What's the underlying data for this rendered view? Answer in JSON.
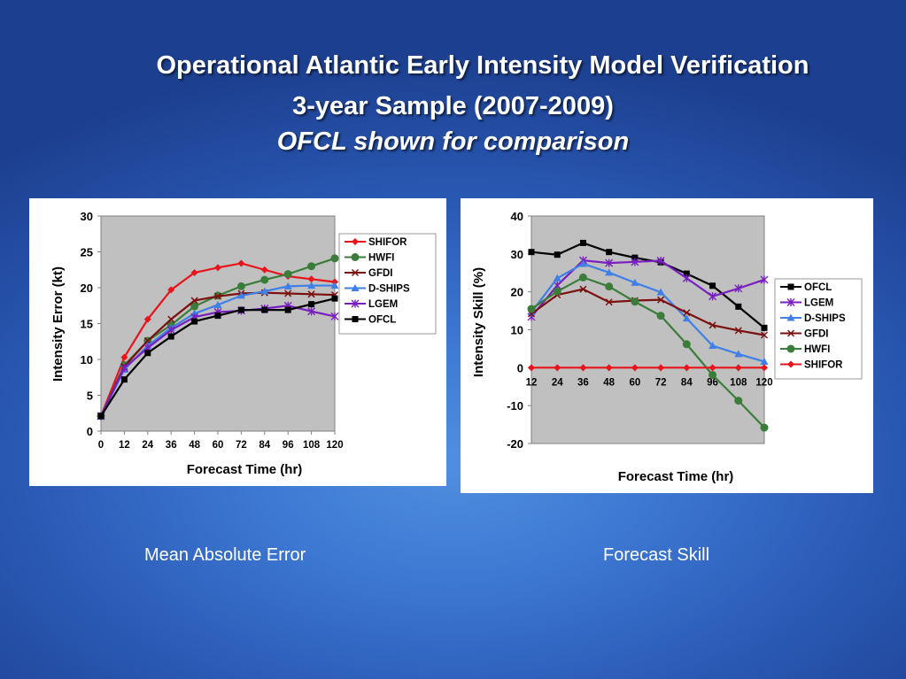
{
  "slide": {
    "title_line1": "Operational Atlantic Early Intensity Model Verification",
    "title_line2": "3-year Sample (2007-2009)",
    "title_line3": "OFCL shown for comparison",
    "caption_left": "Mean Absolute Error",
    "caption_right": "Forecast Skill"
  },
  "chart_data": [
    {
      "type": "line",
      "xlabel": "Forecast Time (hr)",
      "ylabel": "Intensity Error (kt)",
      "x": [
        0,
        12,
        24,
        36,
        48,
        60,
        72,
        84,
        96,
        108,
        120
      ],
      "ylim": [
        0,
        30
      ],
      "yticks": [
        0,
        5,
        10,
        15,
        20,
        25,
        30
      ],
      "grid": false,
      "plot_background": "#c0c0c0",
      "legend_position": "right",
      "series": [
        {
          "name": "SHIFOR",
          "color": "#e8141c",
          "marker": "diamond",
          "values": [
            2.1,
            10.3,
            15.6,
            19.7,
            22.1,
            22.8,
            23.4,
            22.5,
            21.6,
            21.2,
            20.8
          ]
        },
        {
          "name": "HWFI",
          "color": "#3a7d3a",
          "marker": "circle",
          "values": [
            2.1,
            9.2,
            12.6,
            14.8,
            17.4,
            18.9,
            20.2,
            21.1,
            21.9,
            23.0,
            24.1
          ]
        },
        {
          "name": "GFDI",
          "color": "#7b1010",
          "marker": "x",
          "values": [
            2.1,
            9.0,
            12.6,
            15.6,
            18.2,
            18.8,
            19.2,
            19.3,
            19.2,
            19.1,
            19.0
          ]
        },
        {
          "name": "D-SHIPS",
          "color": "#3f7fe8",
          "marker": "triangle",
          "values": [
            2.1,
            8.6,
            11.9,
            14.4,
            16.4,
            17.6,
            18.9,
            19.5,
            20.2,
            20.3,
            20.3
          ]
        },
        {
          "name": "LGEM",
          "color": "#7a1fbf",
          "marker": "star",
          "values": [
            2.1,
            8.8,
            11.6,
            14.1,
            15.9,
            16.6,
            16.8,
            17.1,
            17.5,
            16.7,
            16.0
          ]
        },
        {
          "name": "OFCL",
          "color": "#000000",
          "marker": "square",
          "values": [
            2.1,
            7.2,
            10.9,
            13.2,
            15.3,
            16.1,
            16.9,
            16.9,
            16.9,
            17.7,
            18.5
          ]
        }
      ]
    },
    {
      "type": "line",
      "xlabel": "Forecast Time (hr)",
      "ylabel": "Intensity Skill (%)",
      "x": [
        12,
        24,
        36,
        48,
        60,
        72,
        84,
        96,
        108,
        120
      ],
      "ylim": [
        -20,
        40
      ],
      "yticks": [
        -20,
        -10,
        0,
        10,
        20,
        30,
        40
      ],
      "grid": false,
      "plot_background": "#c0c0c0",
      "legend_position": "right",
      "series": [
        {
          "name": "OFCL",
          "color": "#000000",
          "marker": "square",
          "values": [
            30.5,
            29.8,
            32.9,
            30.5,
            29.0,
            27.8,
            24.8,
            21.6,
            16.1,
            10.5
          ]
        },
        {
          "name": "LGEM",
          "color": "#7a1fbf",
          "marker": "star",
          "values": [
            13.4,
            21.7,
            28.3,
            27.6,
            27.9,
            28.2,
            23.6,
            18.8,
            20.9,
            23.2
          ]
        },
        {
          "name": "D-SHIPS",
          "color": "#3f7fe8",
          "marker": "triangle",
          "values": [
            14.6,
            23.6,
            27.4,
            25.1,
            22.4,
            19.9,
            13.0,
            5.8,
            3.6,
            1.6
          ]
        },
        {
          "name": "GFDI",
          "color": "#7b1010",
          "marker": "x",
          "values": [
            14.2,
            19.2,
            20.7,
            17.3,
            17.7,
            17.9,
            14.5,
            11.2,
            9.8,
            8.6
          ]
        },
        {
          "name": "HWFI",
          "color": "#3a7d3a",
          "marker": "circle",
          "values": [
            15.5,
            20.1,
            23.8,
            21.4,
            17.4,
            13.7,
            6.2,
            -1.9,
            -8.7,
            -15.8
          ]
        },
        {
          "name": "SHIFOR",
          "color": "#e8141c",
          "marker": "diamond",
          "values": [
            0,
            0,
            0,
            0,
            0,
            0,
            0,
            0,
            0,
            0
          ]
        }
      ]
    }
  ]
}
